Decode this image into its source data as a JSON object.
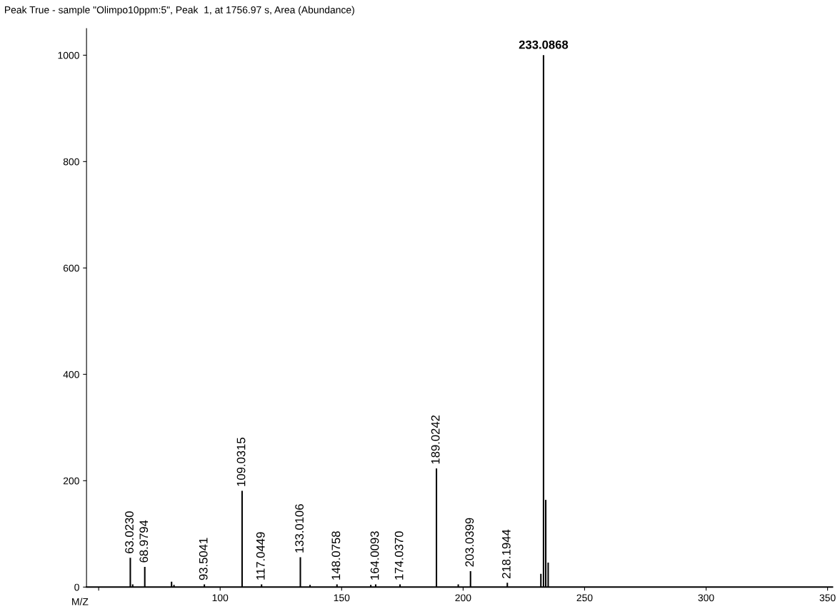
{
  "chart_data": {
    "type": "bar",
    "title": "Peak True - sample \"Olimpo10ppm:5\", Peak  1, at 1756.97 s, Area (Abundance)",
    "xlabel": "M/Z",
    "x": [
      63.023,
      64,
      68.9794,
      80,
      81,
      93.5041,
      109.0315,
      117.0449,
      133.0106,
      137,
      148.0758,
      162,
      164.0093,
      174.037,
      189.0242,
      198,
      203.0399,
      218.1944,
      232,
      233.0868,
      234,
      235
    ],
    "values": [
      55,
      5,
      38,
      10,
      4,
      5,
      181,
      5,
      56,
      4,
      5,
      4,
      5,
      5,
      223,
      5,
      30,
      8,
      25,
      1000,
      164,
      46
    ],
    "annotations": [
      {
        "text": "63.0230",
        "x": 63.023,
        "y": 55
      },
      {
        "text": "68.9794",
        "x": 68.9794,
        "y": 38
      },
      {
        "text": "93.5041",
        "x": 93.5041,
        "y": 5
      },
      {
        "text": "109.0315",
        "x": 109.0315,
        "y": 181
      },
      {
        "text": "117.0449",
        "x": 117.0449,
        "y": 5
      },
      {
        "text": "133.0106",
        "x": 133.0106,
        "y": 56
      },
      {
        "text": "148.0758",
        "x": 148.0758,
        "y": 5
      },
      {
        "text": "164.0093",
        "x": 164.0093,
        "y": 5
      },
      {
        "text": "174.0370",
        "x": 174.037,
        "y": 5
      },
      {
        "text": "189.0242",
        "x": 189.0242,
        "y": 223
      },
      {
        "text": "203.0399",
        "x": 203.0399,
        "y": 30
      },
      {
        "text": "218.1944",
        "x": 218.1944,
        "y": 8
      },
      {
        "text": "233.0868",
        "x": 233.0868,
        "y": 1000
      }
    ],
    "color": "#000000",
    "xlim": [
      45,
      352
    ],
    "xticks": [
      {
        "value": 50,
        "label": null
      },
      100,
      150,
      200,
      250,
      300,
      350
    ],
    "ylim": [
      0,
      1050
    ],
    "yticks": [
      0,
      200,
      400,
      600,
      800,
      1000
    ],
    "grid": false
  }
}
